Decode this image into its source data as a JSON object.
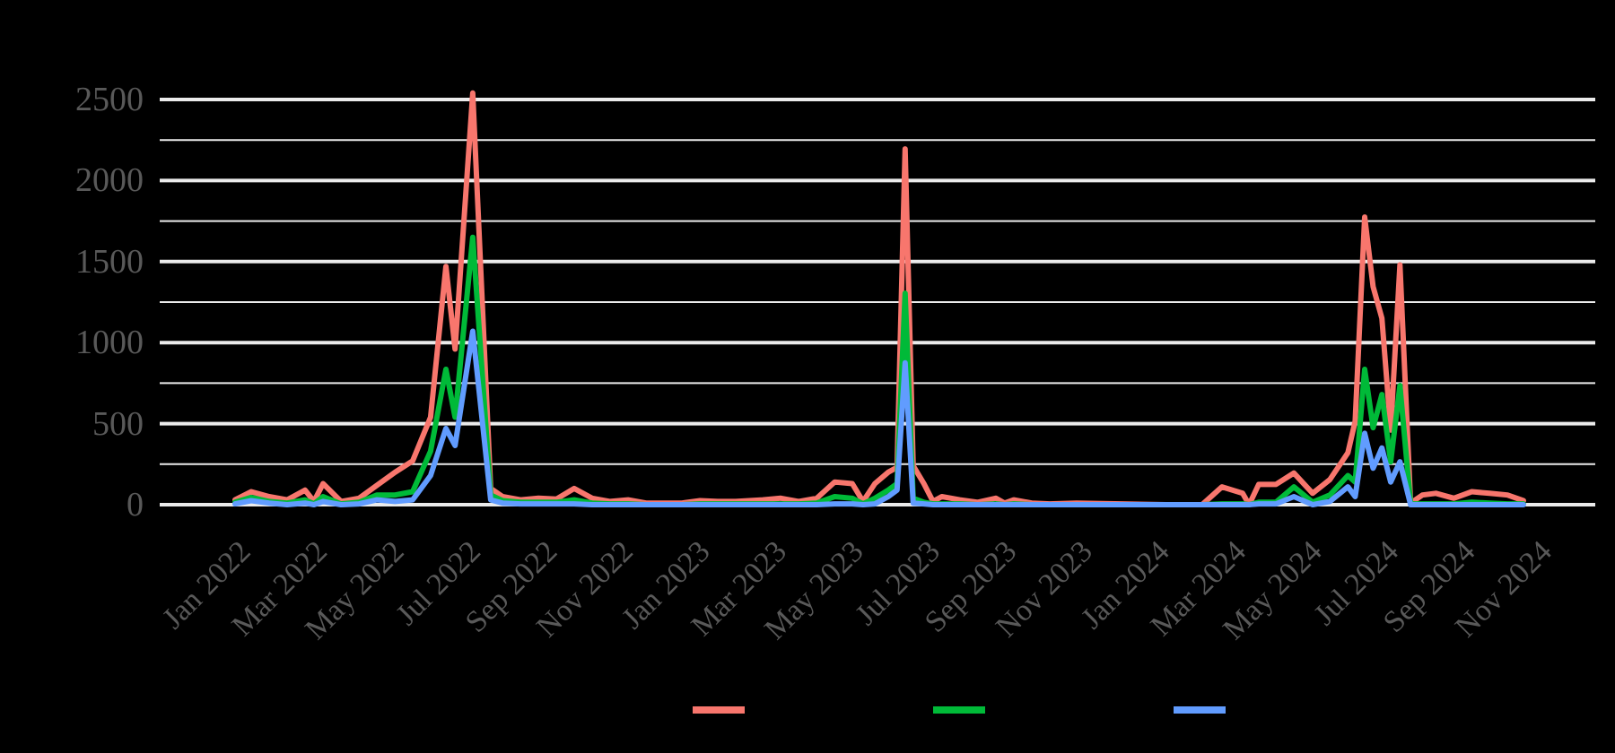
{
  "chart_data": {
    "type": "line",
    "title": "",
    "xlabel": "",
    "ylabel": "",
    "ylim": [
      0,
      2500
    ],
    "grid": true,
    "legend_position": "bottom",
    "y_ticks": [
      "0",
      "500",
      "1000",
      "1500",
      "2000",
      "2500"
    ],
    "y_tick_values": [
      0,
      500,
      1000,
      1500,
      2000,
      2500
    ],
    "minor_gridlines": [
      250,
      750,
      1250,
      1750,
      2250
    ],
    "x_ticks": [
      "Jan 2022",
      "Mar 2022",
      "May 2022",
      "Jul 2022",
      "Sep 2022",
      "Nov 2022",
      "Jan 2023",
      "Mar 2023",
      "May 2023",
      "Jul 2023",
      "Sep 2023",
      "Nov 2023",
      "Jan 2024",
      "Mar 2024",
      "May 2024",
      "Jul 2024",
      "Sep 2024",
      "Nov 2024"
    ],
    "x_unit": "months since Jan 2022",
    "series": [
      {
        "name": "",
        "color": "#F8766D",
        "points": [
          [
            0,
            30
          ],
          [
            0.42,
            80
          ],
          [
            0.89,
            50
          ],
          [
            1.36,
            30
          ],
          [
            1.83,
            90
          ],
          [
            2.06,
            20
          ],
          [
            2.3,
            130
          ],
          [
            2.77,
            20
          ],
          [
            3.24,
            40
          ],
          [
            3.71,
            120
          ],
          [
            4.18,
            200
          ],
          [
            4.64,
            270
          ],
          [
            5.11,
            540
          ],
          [
            5.51,
            1470
          ],
          [
            5.75,
            960
          ],
          [
            6.21,
            2540
          ],
          [
            6.68,
            100
          ],
          [
            6.99,
            50
          ],
          [
            7.46,
            30
          ],
          [
            7.93,
            40
          ],
          [
            8.4,
            35
          ],
          [
            8.86,
            100
          ],
          [
            9.33,
            40
          ],
          [
            9.8,
            20
          ],
          [
            10.27,
            30
          ],
          [
            10.74,
            10
          ],
          [
            11.68,
            10
          ],
          [
            12.15,
            25
          ],
          [
            12.61,
            20
          ],
          [
            13.08,
            20
          ],
          [
            13.79,
            30
          ],
          [
            14.26,
            40
          ],
          [
            14.73,
            20
          ],
          [
            15.2,
            40
          ],
          [
            15.67,
            140
          ],
          [
            16.13,
            130
          ],
          [
            16.41,
            20
          ],
          [
            16.72,
            130
          ],
          [
            17.07,
            200
          ],
          [
            17.3,
            230
          ],
          [
            17.51,
            2195
          ],
          [
            17.72,
            240
          ],
          [
            18.0,
            130
          ],
          [
            18.24,
            20
          ],
          [
            18.47,
            50
          ],
          [
            18.94,
            30
          ],
          [
            19.41,
            15
          ],
          [
            19.88,
            40
          ],
          [
            20.11,
            10
          ],
          [
            20.35,
            30
          ],
          [
            20.82,
            10
          ],
          [
            21.29,
            5
          ],
          [
            21.99,
            10
          ],
          [
            24.33,
            0
          ],
          [
            25.27,
            0
          ],
          [
            25.79,
            110
          ],
          [
            26.33,
            70
          ],
          [
            26.5,
            0
          ],
          [
            26.75,
            125
          ],
          [
            27.2,
            125
          ],
          [
            27.67,
            195
          ],
          [
            28.16,
            70
          ],
          [
            28.61,
            155
          ],
          [
            29.08,
            320
          ],
          [
            29.27,
            515
          ],
          [
            29.52,
            1775
          ],
          [
            29.74,
            1345
          ],
          [
            29.97,
            1150
          ],
          [
            30.2,
            460
          ],
          [
            30.44,
            1480
          ],
          [
            30.72,
            10
          ],
          [
            31.03,
            60
          ],
          [
            31.38,
            70
          ],
          [
            31.85,
            40
          ],
          [
            32.32,
            80
          ],
          [
            32.78,
            70
          ],
          [
            33.25,
            60
          ],
          [
            33.67,
            25
          ]
        ]
      },
      {
        "name": "",
        "color": "#00BA38",
        "points": [
          [
            0,
            15
          ],
          [
            0.42,
            45
          ],
          [
            0.89,
            20
          ],
          [
            1.36,
            10
          ],
          [
            1.83,
            30
          ],
          [
            2.06,
            5
          ],
          [
            2.3,
            50
          ],
          [
            2.77,
            5
          ],
          [
            3.24,
            15
          ],
          [
            3.71,
            60
          ],
          [
            4.18,
            60
          ],
          [
            4.64,
            80
          ],
          [
            5.11,
            330
          ],
          [
            5.51,
            835
          ],
          [
            5.75,
            540
          ],
          [
            6.21,
            1650
          ],
          [
            6.68,
            60
          ],
          [
            6.99,
            25
          ],
          [
            7.46,
            15
          ],
          [
            7.93,
            15
          ],
          [
            8.4,
            15
          ],
          [
            8.86,
            30
          ],
          [
            9.33,
            10
          ],
          [
            9.8,
            5
          ],
          [
            10.27,
            5
          ],
          [
            10.74,
            0
          ],
          [
            11.68,
            0
          ],
          [
            12.15,
            5
          ],
          [
            12.61,
            5
          ],
          [
            13.08,
            5
          ],
          [
            13.79,
            5
          ],
          [
            14.26,
            5
          ],
          [
            14.73,
            5
          ],
          [
            15.2,
            10
          ],
          [
            15.67,
            50
          ],
          [
            16.13,
            40
          ],
          [
            16.41,
            5
          ],
          [
            16.72,
            40
          ],
          [
            17.07,
            90
          ],
          [
            17.3,
            130
          ],
          [
            17.51,
            1305
          ],
          [
            17.72,
            40
          ],
          [
            18.0,
            15
          ],
          [
            18.24,
            5
          ],
          [
            18.47,
            5
          ],
          [
            18.94,
            5
          ],
          [
            19.41,
            0
          ],
          [
            19.88,
            5
          ],
          [
            20.11,
            0
          ],
          [
            20.35,
            5
          ],
          [
            20.82,
            0
          ],
          [
            21.29,
            0
          ],
          [
            21.99,
            0
          ],
          [
            24.33,
            0
          ],
          [
            25.27,
            0
          ],
          [
            25.79,
            5
          ],
          [
            26.33,
            5
          ],
          [
            26.5,
            0
          ],
          [
            26.75,
            15
          ],
          [
            27.2,
            15
          ],
          [
            27.67,
            110
          ],
          [
            28.16,
            15
          ],
          [
            28.61,
            60
          ],
          [
            29.08,
            180
          ],
          [
            29.27,
            140
          ],
          [
            29.52,
            835
          ],
          [
            29.74,
            475
          ],
          [
            29.97,
            680
          ],
          [
            30.2,
            265
          ],
          [
            30.44,
            735
          ],
          [
            30.72,
            5
          ],
          [
            31.03,
            5
          ],
          [
            31.38,
            5
          ],
          [
            31.85,
            5
          ],
          [
            32.32,
            15
          ],
          [
            32.78,
            10
          ],
          [
            33.25,
            5
          ],
          [
            33.67,
            5
          ]
        ]
      },
      {
        "name": "",
        "color": "#619CFF",
        "points": [
          [
            0,
            5
          ],
          [
            0.42,
            25
          ],
          [
            0.89,
            10
          ],
          [
            1.36,
            0
          ],
          [
            1.83,
            10
          ],
          [
            2.06,
            0
          ],
          [
            2.3,
            20
          ],
          [
            2.77,
            0
          ],
          [
            3.24,
            5
          ],
          [
            3.71,
            30
          ],
          [
            4.18,
            20
          ],
          [
            4.64,
            30
          ],
          [
            5.11,
            180
          ],
          [
            5.51,
            470
          ],
          [
            5.75,
            365
          ],
          [
            6.21,
            1070
          ],
          [
            6.68,
            30
          ],
          [
            6.99,
            10
          ],
          [
            7.46,
            5
          ],
          [
            7.93,
            5
          ],
          [
            8.4,
            5
          ],
          [
            8.86,
            5
          ],
          [
            9.33,
            0
          ],
          [
            9.8,
            0
          ],
          [
            10.27,
            0
          ],
          [
            10.74,
            0
          ],
          [
            11.68,
            0
          ],
          [
            12.15,
            0
          ],
          [
            12.61,
            0
          ],
          [
            13.08,
            0
          ],
          [
            13.79,
            0
          ],
          [
            14.26,
            0
          ],
          [
            14.73,
            0
          ],
          [
            15.2,
            0
          ],
          [
            15.67,
            5
          ],
          [
            16.13,
            5
          ],
          [
            16.41,
            0
          ],
          [
            16.72,
            5
          ],
          [
            17.07,
            50
          ],
          [
            17.3,
            90
          ],
          [
            17.51,
            875
          ],
          [
            17.72,
            10
          ],
          [
            18.0,
            5
          ],
          [
            18.24,
            0
          ],
          [
            18.47,
            0
          ],
          [
            18.94,
            0
          ],
          [
            19.41,
            0
          ],
          [
            19.88,
            0
          ],
          [
            20.11,
            0
          ],
          [
            20.35,
            0
          ],
          [
            20.82,
            0
          ],
          [
            21.29,
            0
          ],
          [
            21.99,
            0
          ],
          [
            24.33,
            0
          ],
          [
            25.27,
            0
          ],
          [
            25.79,
            0
          ],
          [
            26.33,
            0
          ],
          [
            26.5,
            0
          ],
          [
            26.75,
            5
          ],
          [
            27.2,
            5
          ],
          [
            27.67,
            50
          ],
          [
            28.16,
            0
          ],
          [
            28.61,
            20
          ],
          [
            29.08,
            110
          ],
          [
            29.27,
            50
          ],
          [
            29.52,
            440
          ],
          [
            29.74,
            225
          ],
          [
            29.97,
            350
          ],
          [
            30.2,
            140
          ],
          [
            30.44,
            265
          ],
          [
            30.72,
            0
          ],
          [
            31.03,
            0
          ],
          [
            31.38,
            0
          ],
          [
            31.85,
            0
          ],
          [
            32.32,
            0
          ],
          [
            32.78,
            0
          ],
          [
            33.25,
            0
          ],
          [
            33.67,
            0
          ]
        ]
      }
    ]
  },
  "legend": {
    "items": [
      {
        "label": "",
        "color": "#F8766D"
      },
      {
        "label": "",
        "color": "#00BA38"
      },
      {
        "label": "",
        "color": "#619CFF"
      }
    ]
  }
}
